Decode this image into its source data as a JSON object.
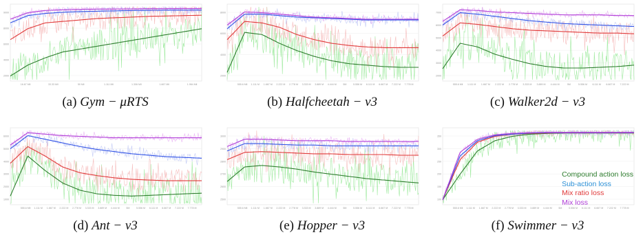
{
  "captions": [
    {
      "tag": "(a)",
      "title": "Gym − μRTS"
    },
    {
      "tag": "(b)",
      "title": "Halfcheetah − v3"
    },
    {
      "tag": "(c)",
      "title": "Walker2d − v3"
    },
    {
      "tag": "(d)",
      "title": "Ant − v3"
    },
    {
      "tag": "(e)",
      "title": "Hopper − v3"
    },
    {
      "tag": "(f)",
      "title": "Swimmer − v3"
    }
  ],
  "legend": {
    "compound": "Compound action loss",
    "subaction": "Sub-action loss",
    "mixratio": "Mix ratio loss",
    "mix": "Mix loss"
  },
  "colors": {
    "compound": "#2e7d2e",
    "compound_raw": "#8ee68e",
    "subaction": "#3355e6",
    "subaction_raw": "#b8c2f5",
    "mixratio": "#e03a3a",
    "mixratio_raw": "#f5b3b3",
    "mix": "#b040d8",
    "mix_raw": "#e6a8f2"
  },
  "chart_data": [
    {
      "type": "line",
      "panel": "a",
      "x_ticks": [
        "16.67 Mil",
        "33.33 Mil",
        "50 Mil",
        "1.111 Mil",
        "1.306 Mil",
        "1.667 Mil",
        "1.964 Mil"
      ],
      "y_ticks": [
        "2000",
        "4000",
        "6000",
        "8000",
        "9000"
      ],
      "series": [
        {
          "key": "mix",
          "values": [
            0.83,
            0.92,
            0.95,
            0.96,
            0.965,
            0.97,
            0.97,
            0.972,
            0.975,
            0.975,
            0.976,
            0.978
          ]
        },
        {
          "key": "subaction",
          "values": [
            0.78,
            0.88,
            0.91,
            0.925,
            0.935,
            0.94,
            0.945,
            0.95,
            0.952,
            0.955,
            0.955,
            0.956
          ]
        },
        {
          "key": "mixratio",
          "values": [
            0.55,
            0.7,
            0.78,
            0.8,
            0.82,
            0.84,
            0.85,
            0.86,
            0.87,
            0.875,
            0.88,
            0.885
          ]
        },
        {
          "key": "compound",
          "values": [
            0.05,
            0.2,
            0.3,
            0.38,
            0.42,
            0.46,
            0.5,
            0.54,
            0.58,
            0.62,
            0.66,
            0.7
          ]
        }
      ]
    },
    {
      "type": "line",
      "panel": "b",
      "x_ticks": [
        "555.6 Mil",
        "1.111 M",
        "1.667 M",
        "2.222 M",
        "2.778 M",
        "3.333 M",
        "3.889 M",
        "4.444 M",
        "5M",
        "5.556 M",
        "6.111 M",
        "6.667 M",
        "7.222 M",
        "7.778 M"
      ],
      "y_ticks": [
        "2000",
        "4000",
        "6000",
        "8000"
      ],
      "series": [
        {
          "key": "mix",
          "values": [
            0.75,
            0.93,
            0.92,
            0.9,
            0.88,
            0.86,
            0.85,
            0.84,
            0.83,
            0.83,
            0.83,
            0.83
          ]
        },
        {
          "key": "subaction",
          "values": [
            0.7,
            0.9,
            0.9,
            0.88,
            0.86,
            0.85,
            0.84,
            0.83,
            0.82,
            0.82,
            0.82,
            0.82
          ]
        },
        {
          "key": "mixratio",
          "values": [
            0.55,
            0.8,
            0.78,
            0.72,
            0.62,
            0.55,
            0.5,
            0.47,
            0.45,
            0.44,
            0.44,
            0.44
          ]
        },
        {
          "key": "compound",
          "values": [
            0.1,
            0.65,
            0.62,
            0.5,
            0.4,
            0.32,
            0.26,
            0.22,
            0.2,
            0.18,
            0.17,
            0.17
          ]
        }
      ]
    },
    {
      "type": "line",
      "panel": "c",
      "x_ticks": [
        "555.6 Mil",
        "1.111 M",
        "1.667 M",
        "2.222 M",
        "2.778 M",
        "3.333 M",
        "3.889 M",
        "4.444 M",
        "5M",
        "5.556 M",
        "6.111 M",
        "6.667 M",
        "7.222 M"
      ],
      "y_ticks": [
        "2000",
        "3000",
        "4000",
        "5000",
        "6000",
        "7000"
      ],
      "series": [
        {
          "key": "mix",
          "values": [
            0.8,
            0.96,
            0.95,
            0.93,
            0.92,
            0.91,
            0.9,
            0.89,
            0.89,
            0.89,
            0.88,
            0.88
          ]
        },
        {
          "key": "subaction",
          "values": [
            0.75,
            0.92,
            0.9,
            0.87,
            0.84,
            0.81,
            0.79,
            0.77,
            0.76,
            0.75,
            0.74,
            0.73
          ]
        },
        {
          "key": "mixratio",
          "values": [
            0.6,
            0.78,
            0.76,
            0.73,
            0.7,
            0.68,
            0.67,
            0.66,
            0.65,
            0.64,
            0.64,
            0.63
          ]
        },
        {
          "key": "compound",
          "values": [
            0.15,
            0.5,
            0.45,
            0.35,
            0.28,
            0.22,
            0.18,
            0.16,
            0.16,
            0.17,
            0.18,
            0.2
          ]
        }
      ]
    },
    {
      "type": "line",
      "panel": "d",
      "x_ticks": [
        "555.6 Mil",
        "1.111 M",
        "1.667 M",
        "2.222 M",
        "2.778 M",
        "3.333 M",
        "3.889 M",
        "4.444 M",
        "5M",
        "5.556 M",
        "6.111 M",
        "6.667 M",
        "7.222 M",
        "7.778 M"
      ],
      "y_ticks": [
        "1000",
        "2000",
        "3000",
        "4000",
        "5000",
        "6000"
      ],
      "series": [
        {
          "key": "mix",
          "values": [
            0.8,
            0.97,
            0.95,
            0.93,
            0.92,
            0.91,
            0.9,
            0.9,
            0.9,
            0.9,
            0.9,
            0.9
          ]
        },
        {
          "key": "subaction",
          "values": [
            0.75,
            0.93,
            0.88,
            0.83,
            0.78,
            0.74,
            0.71,
            0.68,
            0.66,
            0.64,
            0.63,
            0.62
          ]
        },
        {
          "key": "mixratio",
          "values": [
            0.55,
            0.78,
            0.65,
            0.5,
            0.42,
            0.38,
            0.35,
            0.33,
            0.32,
            0.31,
            0.31,
            0.31
          ]
        },
        {
          "key": "compound",
          "values": [
            0.1,
            0.65,
            0.45,
            0.28,
            0.18,
            0.13,
            0.11,
            0.1,
            0.11,
            0.12,
            0.13,
            0.14
          ]
        }
      ]
    },
    {
      "type": "line",
      "panel": "e",
      "x_ticks": [
        "555.6 Mil",
        "1.111 M",
        "1.667 M",
        "2.222 M",
        "2.778 M",
        "3.333 M",
        "3.889 M",
        "4.444 M",
        "5M",
        "5.556 M",
        "6.111 M",
        "6.667 M",
        "7.222 M",
        "7.778 M"
      ],
      "y_ticks": [
        "2500",
        "2600",
        "2700",
        "2800",
        "2900",
        "3000"
      ],
      "series": [
        {
          "key": "mix",
          "values": [
            0.78,
            0.88,
            0.88,
            0.87,
            0.86,
            0.86,
            0.86,
            0.85,
            0.85,
            0.85,
            0.85,
            0.85
          ]
        },
        {
          "key": "subaction",
          "values": [
            0.72,
            0.82,
            0.82,
            0.81,
            0.8,
            0.8,
            0.79,
            0.79,
            0.79,
            0.79,
            0.79,
            0.79
          ]
        },
        {
          "key": "mixratio",
          "values": [
            0.6,
            0.7,
            0.71,
            0.7,
            0.69,
            0.68,
            0.68,
            0.67,
            0.67,
            0.67,
            0.66,
            0.66
          ]
        },
        {
          "key": "compound",
          "values": [
            0.3,
            0.5,
            0.52,
            0.5,
            0.47,
            0.43,
            0.4,
            0.37,
            0.34,
            0.32,
            0.3,
            0.28
          ]
        }
      ]
    },
    {
      "type": "line",
      "panel": "f",
      "x_ticks": [
        "555.6 Mil",
        "1.111 M",
        "1.667 M",
        "2.222 M",
        "2.778 M",
        "3.333 M",
        "3.889 M",
        "4.444 M",
        "5M",
        "5.556 M",
        "6.111 M",
        "6.667 M",
        "7.222 M",
        "7.778 M"
      ],
      "y_ticks": [
        "100",
        "150",
        "200",
        "250",
        "300",
        "350"
      ],
      "series": [
        {
          "key": "mix",
          "values": [
            0.05,
            0.7,
            0.88,
            0.94,
            0.96,
            0.97,
            0.975,
            0.975,
            0.975,
            0.975,
            0.975,
            0.975
          ]
        },
        {
          "key": "subaction",
          "values": [
            0.05,
            0.65,
            0.86,
            0.93,
            0.95,
            0.965,
            0.97,
            0.97,
            0.97,
            0.97,
            0.97,
            0.97
          ]
        },
        {
          "key": "mixratio",
          "values": [
            0.05,
            0.6,
            0.84,
            0.92,
            0.95,
            0.96,
            0.965,
            0.968,
            0.968,
            0.968,
            0.968,
            0.968
          ]
        },
        {
          "key": "compound",
          "values": [
            0.05,
            0.4,
            0.72,
            0.86,
            0.92,
            0.95,
            0.96,
            0.965,
            0.965,
            0.965,
            0.965,
            0.965
          ]
        }
      ]
    }
  ]
}
